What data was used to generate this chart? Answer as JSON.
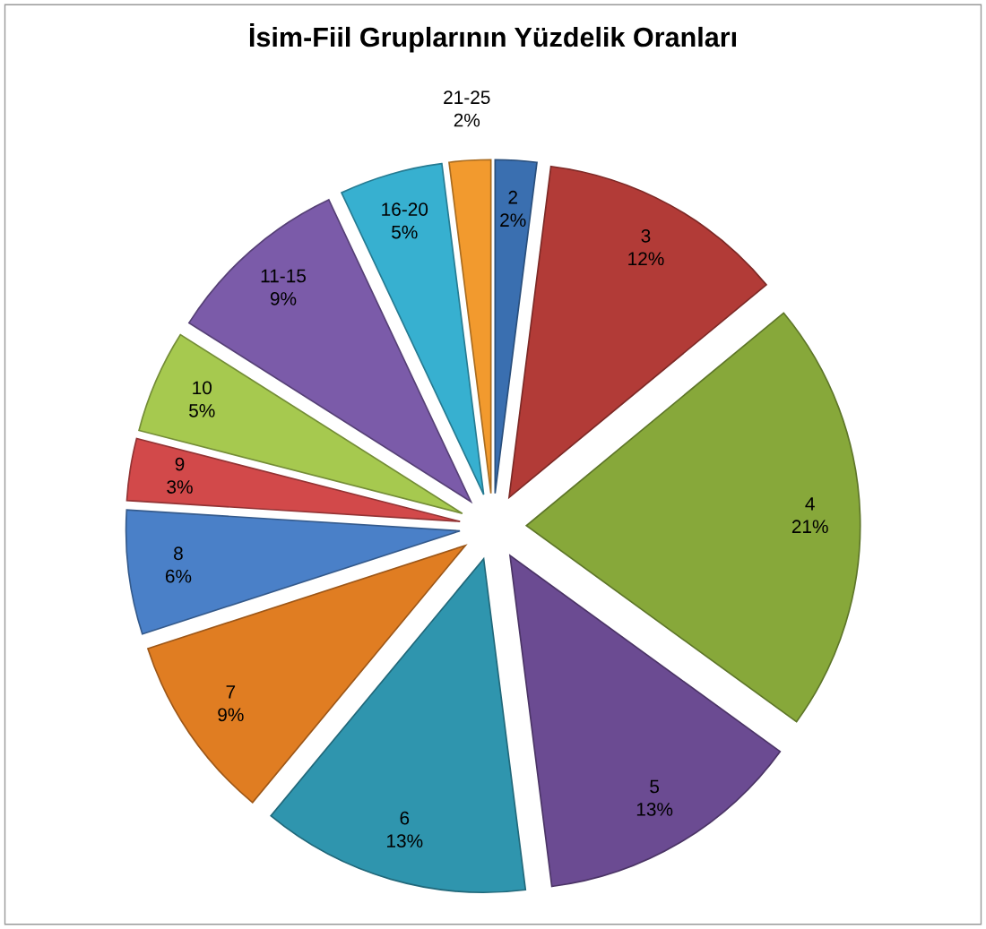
{
  "chart_data": {
    "type": "pie",
    "title": "İsim-Fiil Gruplarının Yüzdelik Oranları",
    "categories": [
      "2",
      "3",
      "4",
      "5",
      "6",
      "7",
      "8",
      "9",
      "10",
      "11-15",
      "16-20",
      "21-25"
    ],
    "values": [
      2,
      12,
      21,
      13,
      13,
      9,
      6,
      3,
      5,
      9,
      5,
      2
    ],
    "colors": [
      "#3a6fb0",
      "#b23b37",
      "#87a83a",
      "#6b4b92",
      "#2f95ae",
      "#e07d22",
      "#4a80c8",
      "#d2494a",
      "#a6c94f",
      "#7b5ba9",
      "#37b0d0",
      "#f29a2e"
    ],
    "value_labels": [
      "2%",
      "12%",
      "21%",
      "13%",
      "13%",
      "9%",
      "6%",
      "3%",
      "5%",
      "9%",
      "5%",
      "2%"
    ],
    "legend": false
  }
}
